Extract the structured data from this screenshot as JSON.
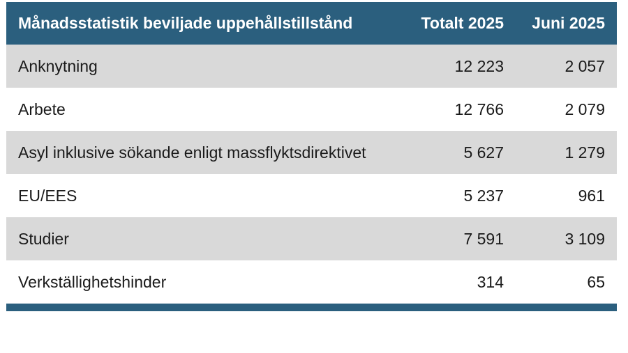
{
  "table": {
    "headers": {
      "label": "Månadsstatistik beviljade uppehållstillstånd",
      "total": "Totalt 2025",
      "june": "Juni 2025"
    },
    "rows": [
      {
        "label": "Anknytning",
        "total": "12 223",
        "june": "2 057"
      },
      {
        "label": "Arbete",
        "total": "12 766",
        "june": "2 079"
      },
      {
        "label": "Asyl inklusive sökande enligt massflyktsdirektivet",
        "total": "5 627",
        "june": "1 279"
      },
      {
        "label": "EU/EES",
        "total": "5 237",
        "june": "961"
      },
      {
        "label": "Studier",
        "total": "7 591",
        "june": "3 109"
      },
      {
        "label": "Verkställighetshinder",
        "total": "314",
        "june": "65"
      }
    ]
  },
  "colors": {
    "header_bg": "#2b5f7e",
    "row_alt_bg": "#d9d9d9"
  }
}
